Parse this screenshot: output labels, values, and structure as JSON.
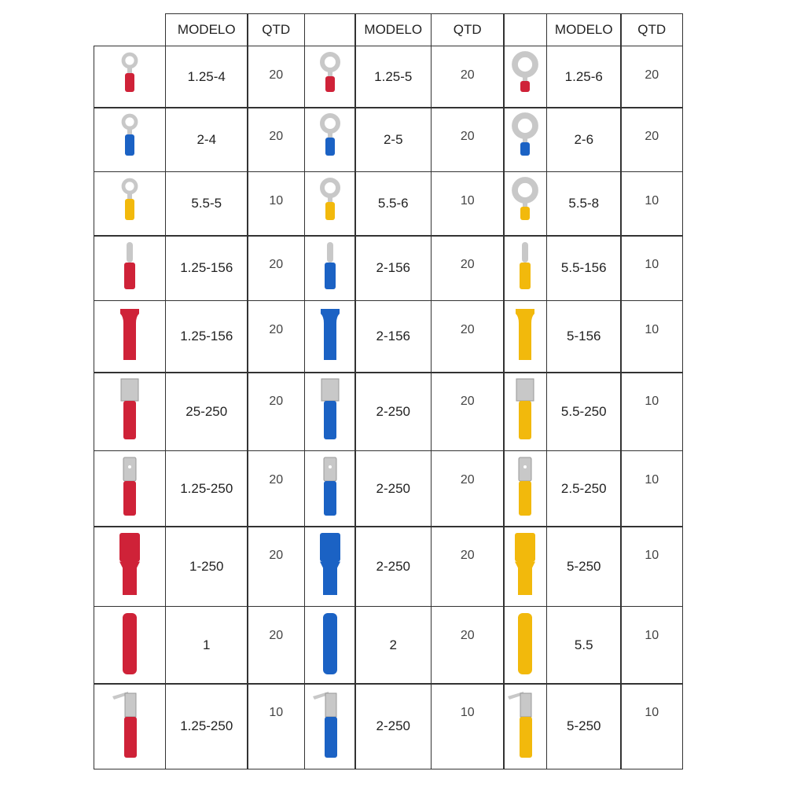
{
  "colors": {
    "red": "#cf2238",
    "blue": "#1b62c4",
    "yellow": "#f2b90c",
    "metal": "#c8c8c8"
  },
  "header": {
    "model_label": "MODELO",
    "qty_label": "QTD"
  },
  "rows": [
    {
      "type": "ring",
      "groups": [
        {
          "model": "1.25-4",
          "qty": "20",
          "color": "red",
          "size": "s"
        },
        {
          "model": "1.25-5",
          "qty": "20",
          "color": "red",
          "size": "m"
        },
        {
          "model": "1.25-6",
          "qty": "20",
          "color": "red",
          "size": "l"
        }
      ]
    },
    {
      "type": "ring",
      "groups": [
        {
          "model": "2-4",
          "qty": "20",
          "color": "blue",
          "size": "s"
        },
        {
          "model": "2-5",
          "qty": "20",
          "color": "blue",
          "size": "m"
        },
        {
          "model": "2-6",
          "qty": "20",
          "color": "blue",
          "size": "l"
        }
      ]
    },
    {
      "type": "ring",
      "groups": [
        {
          "model": "5.5-5",
          "qty": "10",
          "color": "yellow",
          "size": "s"
        },
        {
          "model": "5.5-6",
          "qty": "10",
          "color": "yellow",
          "size": "m"
        },
        {
          "model": "5.5-8",
          "qty": "10",
          "color": "yellow",
          "size": "l"
        }
      ]
    },
    {
      "type": "bullet-male",
      "groups": [
        {
          "model": "1.25-156",
          "qty": "20",
          "color": "red"
        },
        {
          "model": "2-156",
          "qty": "20",
          "color": "blue"
        },
        {
          "model": "5.5-156",
          "qty": "10",
          "color": "yellow"
        }
      ]
    },
    {
      "type": "bullet-female",
      "groups": [
        {
          "model": "1.25-156",
          "qty": "20",
          "color": "red"
        },
        {
          "model": "2-156",
          "qty": "20",
          "color": "blue"
        },
        {
          "model": "5-156",
          "qty": "10",
          "color": "yellow"
        }
      ]
    },
    {
      "type": "spade-female",
      "groups": [
        {
          "model": "25-250",
          "qty": "20",
          "color": "red"
        },
        {
          "model": "2-250",
          "qty": "20",
          "color": "blue"
        },
        {
          "model": "5.5-250",
          "qty": "10",
          "color": "yellow"
        }
      ]
    },
    {
      "type": "spade-male",
      "groups": [
        {
          "model": "1.25-250",
          "qty": "20",
          "color": "red"
        },
        {
          "model": "2-250",
          "qty": "20",
          "color": "blue"
        },
        {
          "model": "2.5-250",
          "qty": "10",
          "color": "yellow"
        }
      ]
    },
    {
      "type": "spade-female-insulated",
      "groups": [
        {
          "model": "1-250",
          "qty": "20",
          "color": "red"
        },
        {
          "model": "2-250",
          "qty": "20",
          "color": "blue"
        },
        {
          "model": "5-250",
          "qty": "10",
          "color": "yellow"
        }
      ]
    },
    {
      "type": "butt-splice",
      "groups": [
        {
          "model": "1",
          "qty": "20",
          "color": "red"
        },
        {
          "model": "2",
          "qty": "20",
          "color": "blue"
        },
        {
          "model": "5.5",
          "qty": "10",
          "color": "yellow"
        }
      ]
    },
    {
      "type": "piggyback",
      "groups": [
        {
          "model": "1.25-250",
          "qty": "10",
          "color": "red"
        },
        {
          "model": "2-250",
          "qty": "10",
          "color": "blue"
        },
        {
          "model": "5-250",
          "qty": "10",
          "color": "yellow"
        }
      ]
    }
  ]
}
